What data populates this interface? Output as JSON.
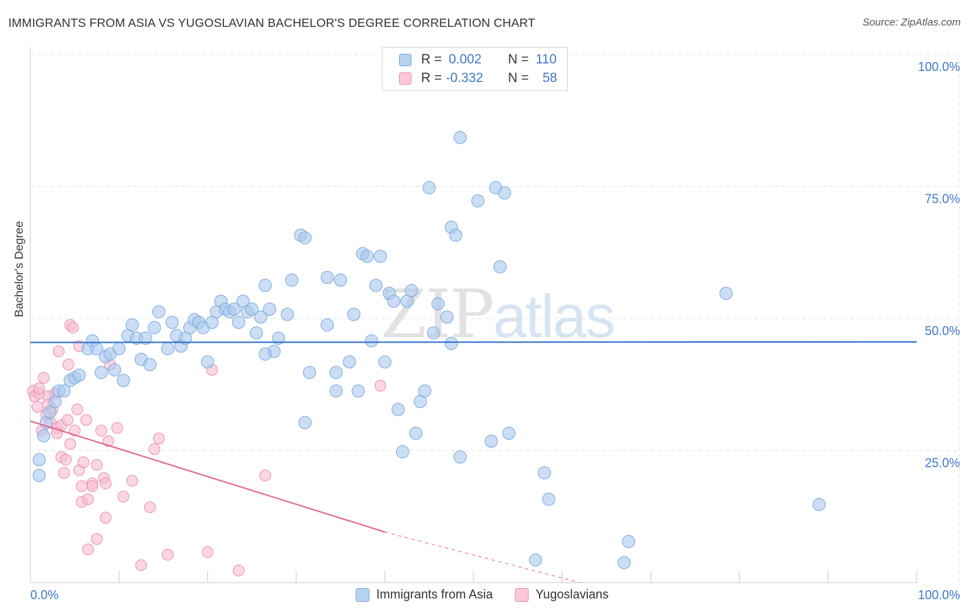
{
  "header": {
    "title": "IMMIGRANTS FROM ASIA VS YUGOSLAVIAN BACHELOR'S DEGREE CORRELATION CHART",
    "source": "Source: ZipAtlas.com"
  },
  "watermark": {
    "zip": "ZIP",
    "atlas": "atlas"
  },
  "legend_top": {
    "rows": [
      {
        "r_label": "R =",
        "r_value": "0.002",
        "n_label": "N =",
        "n_value": "110"
      },
      {
        "r_label": "R =",
        "r_value": "-0.332",
        "n_label": "N =",
        "n_value": "58"
      }
    ]
  },
  "colors": {
    "blue_fill": "#a8c8ec",
    "blue_stroke": "#7aaadf",
    "blue_line": "#2e6fcb",
    "pink_fill": "#f7bcd0",
    "pink_stroke": "#eb92b1",
    "pink_line": "#e3688e",
    "grid": "#e0e0e0",
    "axis_text": "#3d78c7"
  },
  "chart_data": {
    "type": "scatter",
    "title": "IMMIGRANTS FROM ASIA VS YUGOSLAVIAN BACHELOR'S DEGREE CORRELATION CHART",
    "xlabel": "",
    "ylabel": "Bachelor's Degree",
    "xlim": [
      0,
      100
    ],
    "ylim": [
      0,
      100
    ],
    "x_tick_labels": [
      "0.0%",
      "100.0%"
    ],
    "y_tick_values": [
      25,
      50,
      75,
      100
    ],
    "y_tick_labels": [
      "25.0%",
      "50.0%",
      "75.0%",
      "100.0%"
    ],
    "legend": [
      "Immigrants from Asia",
      "Yugoslavians"
    ],
    "series": [
      {
        "name": "Immigrants from Asia",
        "r": 0.002,
        "n": 110,
        "trend": {
          "x0": 0,
          "y0": 47.7,
          "x1": 100,
          "y1": 47.8
        },
        "points": [
          [
            1.0,
            22.5
          ],
          [
            1.0,
            25.5
          ],
          [
            1.5,
            30.0
          ],
          [
            1.8,
            32.5
          ],
          [
            2.2,
            34.5
          ],
          [
            2.8,
            36.5
          ],
          [
            3.2,
            38.5
          ],
          [
            3.8,
            38.5
          ],
          [
            4.5,
            40.5
          ],
          [
            5.0,
            41.0
          ],
          [
            5.5,
            41.5
          ],
          [
            6.5,
            46.5
          ],
          [
            7.0,
            48.0
          ],
          [
            7.5,
            46.5
          ],
          [
            8.0,
            42.0
          ],
          [
            8.5,
            45.0
          ],
          [
            9.0,
            45.5
          ],
          [
            9.5,
            42.5
          ],
          [
            10.0,
            46.5
          ],
          [
            10.5,
            40.5
          ],
          [
            11.0,
            49.0
          ],
          [
            11.5,
            51.0
          ],
          [
            12.0,
            48.5
          ],
          [
            12.5,
            44.5
          ],
          [
            13.0,
            48.5
          ],
          [
            13.5,
            43.5
          ],
          [
            14.0,
            50.5
          ],
          [
            14.5,
            53.5
          ],
          [
            15.5,
            46.5
          ],
          [
            16.0,
            51.5
          ],
          [
            16.5,
            49.0
          ],
          [
            17.0,
            47.0
          ],
          [
            17.5,
            48.5
          ],
          [
            18.0,
            50.5
          ],
          [
            18.5,
            52.0
          ],
          [
            19.0,
            51.5
          ],
          [
            19.5,
            50.5
          ],
          [
            20.0,
            44.0
          ],
          [
            20.5,
            51.5
          ],
          [
            21.0,
            53.5
          ],
          [
            21.5,
            55.5
          ],
          [
            22.0,
            54.0
          ],
          [
            22.5,
            53.5
          ],
          [
            23.0,
            54.0
          ],
          [
            23.5,
            51.5
          ],
          [
            24.0,
            55.5
          ],
          [
            24.5,
            53.5
          ],
          [
            25.0,
            54.0
          ],
          [
            25.5,
            49.5
          ],
          [
            26.0,
            52.5
          ],
          [
            26.5,
            58.5
          ],
          [
            27.0,
            54.0
          ],
          [
            27.5,
            46.0
          ],
          [
            28.0,
            48.5
          ],
          [
            29.0,
            53.0
          ],
          [
            29.5,
            59.5
          ],
          [
            30.5,
            68.0
          ],
          [
            31.0,
            67.5
          ],
          [
            31.5,
            42.0
          ],
          [
            31.0,
            32.5
          ],
          [
            33.5,
            60.0
          ],
          [
            33.5,
            51.0
          ],
          [
            34.5,
            42.0
          ],
          [
            34.5,
            38.5
          ],
          [
            35.0,
            59.5
          ],
          [
            36.0,
            44.0
          ],
          [
            36.5,
            53.0
          ],
          [
            37.0,
            38.5
          ],
          [
            37.5,
            64.5
          ],
          [
            38.0,
            64.0
          ],
          [
            38.5,
            48.0
          ],
          [
            39.0,
            58.5
          ],
          [
            39.5,
            64.0
          ],
          [
            40.0,
            44.0
          ],
          [
            40.5,
            57.0
          ],
          [
            41.0,
            55.5
          ],
          [
            41.5,
            35.0
          ],
          [
            42.0,
            27.0
          ],
          [
            42.5,
            55.5
          ],
          [
            43.0,
            57.5
          ],
          [
            43.5,
            30.5
          ],
          [
            44.0,
            36.5
          ],
          [
            44.5,
            38.5
          ],
          [
            45.0,
            77.0
          ],
          [
            45.5,
            49.5
          ],
          [
            46.0,
            55.0
          ],
          [
            47.0,
            52.5
          ],
          [
            47.5,
            69.5
          ],
          [
            48.0,
            68.0
          ],
          [
            48.5,
            26.0
          ],
          [
            48.5,
            86.5
          ],
          [
            50.5,
            74.5
          ],
          [
            52.0,
            29.0
          ],
          [
            52.5,
            77.0
          ],
          [
            53.0,
            62.0
          ],
          [
            53.5,
            76.0
          ],
          [
            54.0,
            30.5
          ],
          [
            57.0,
            6.5
          ],
          [
            58.0,
            23.0
          ],
          [
            58.5,
            18.0
          ],
          [
            67.0,
            6.0
          ],
          [
            67.5,
            10.0
          ],
          [
            78.5,
            57.0
          ],
          [
            89.0,
            17.0
          ],
          [
            47.5,
            47.5
          ],
          [
            26.5,
            45.5
          ]
        ]
      },
      {
        "name": "Yugoslavians",
        "r": -0.332,
        "n": 58,
        "trend": {
          "x0": 0,
          "y0": 32.8,
          "x1": 40,
          "y1": 11.8,
          "dash_x1": 62,
          "dash_y1": 0
        },
        "points": [
          [
            0.3,
            38.5
          ],
          [
            0.5,
            37.5
          ],
          [
            0.8,
            35.5
          ],
          [
            1.0,
            38.0
          ],
          [
            1.3,
            31.0
          ],
          [
            1.5,
            41.0
          ],
          [
            1.8,
            34.0
          ],
          [
            2.0,
            37.5
          ],
          [
            2.3,
            32.5
          ],
          [
            2.5,
            35.0
          ],
          [
            2.8,
            38.0
          ],
          [
            3.0,
            31.5
          ],
          [
            3.2,
            46.0
          ],
          [
            3.5,
            32.0
          ],
          [
            3.5,
            26.0
          ],
          [
            3.8,
            23.0
          ],
          [
            4.0,
            25.5
          ],
          [
            4.2,
            33.0
          ],
          [
            4.3,
            43.5
          ],
          [
            4.5,
            28.5
          ],
          [
            4.5,
            51.0
          ],
          [
            4.8,
            50.5
          ],
          [
            5.0,
            31.0
          ],
          [
            5.3,
            35.0
          ],
          [
            5.5,
            23.5
          ],
          [
            5.5,
            47.0
          ],
          [
            5.8,
            20.5
          ],
          [
            5.8,
            17.5
          ],
          [
            6.0,
            25.0
          ],
          [
            6.3,
            33.0
          ],
          [
            6.5,
            18.0
          ],
          [
            6.5,
            8.5
          ],
          [
            7.0,
            21.0
          ],
          [
            7.0,
            20.5
          ],
          [
            7.5,
            24.5
          ],
          [
            7.5,
            10.5
          ],
          [
            8.0,
            31.0
          ],
          [
            8.3,
            22.0
          ],
          [
            8.5,
            14.5
          ],
          [
            8.5,
            21.0
          ],
          [
            8.8,
            29.0
          ],
          [
            9.0,
            43.5
          ],
          [
            9.8,
            31.5
          ],
          [
            10.5,
            18.5
          ],
          [
            11.5,
            21.5
          ],
          [
            12.5,
            5.5
          ],
          [
            13.5,
            16.5
          ],
          [
            14.0,
            27.5
          ],
          [
            14.5,
            29.5
          ],
          [
            15.5,
            7.5
          ],
          [
            20.5,
            42.5
          ],
          [
            20.0,
            8.0
          ],
          [
            23.5,
            4.5
          ],
          [
            26.5,
            22.5
          ],
          [
            39.5,
            39.5
          ],
          [
            1.0,
            39.0
          ],
          [
            2.0,
            36.0
          ],
          [
            3.0,
            30.5
          ]
        ]
      }
    ]
  },
  "bottom_legend": [
    {
      "label": "Immigrants from Asia"
    },
    {
      "label": "Yugoslavians"
    }
  ]
}
